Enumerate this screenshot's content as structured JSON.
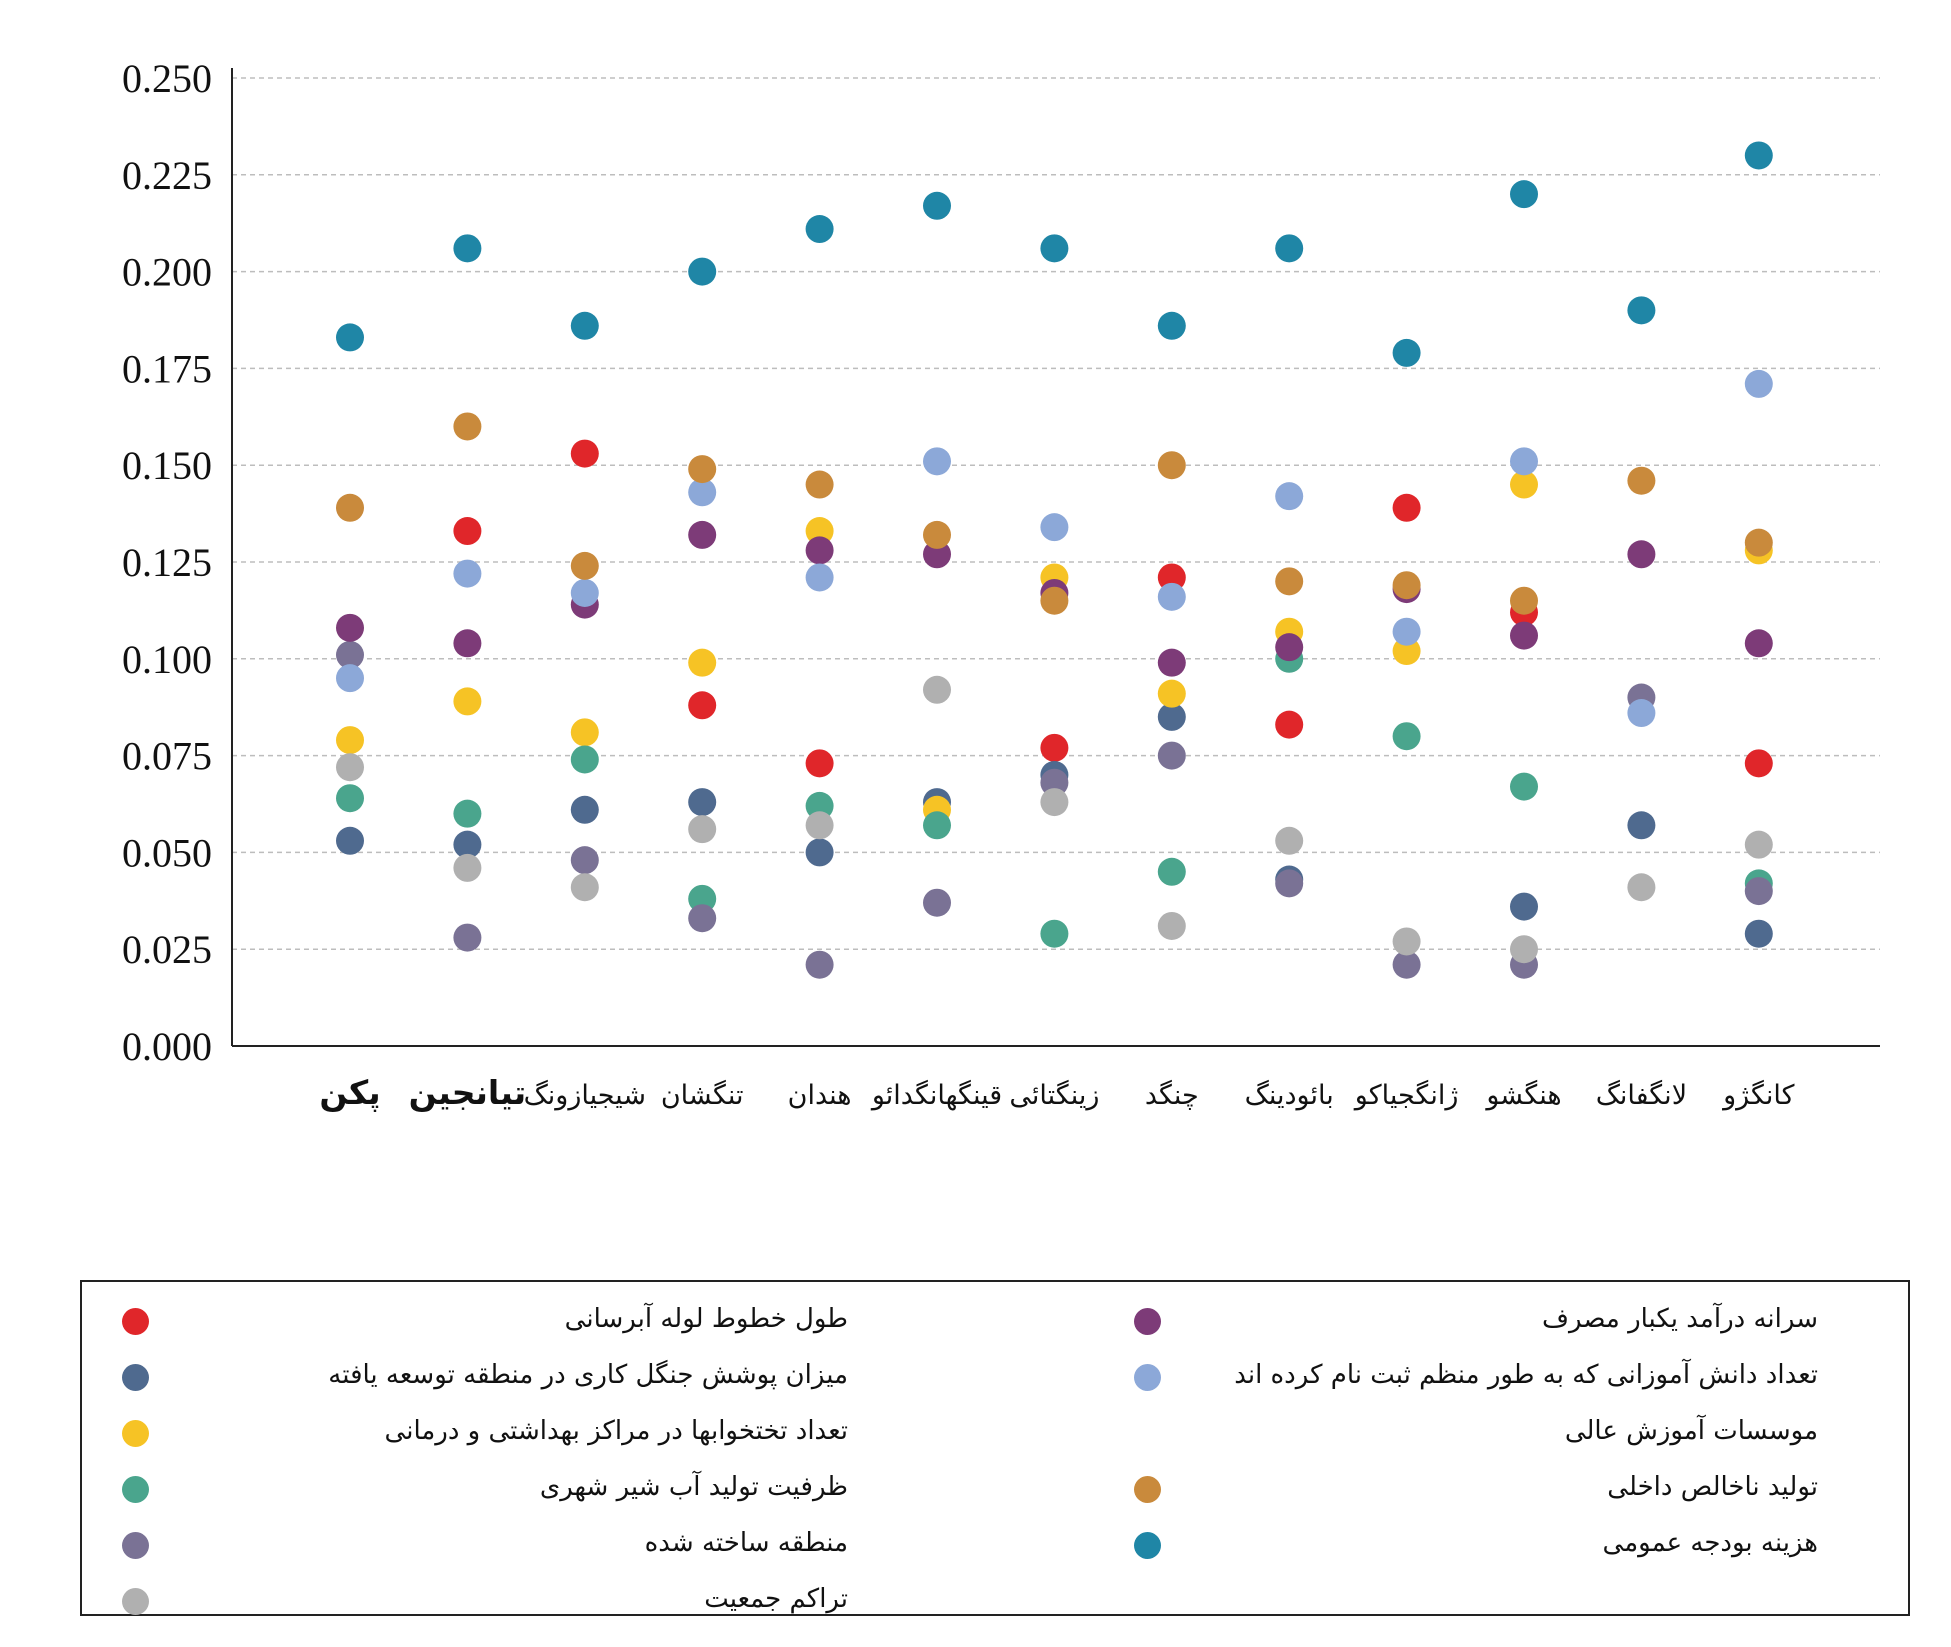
{
  "chart_data": {
    "type": "scatter",
    "title": "",
    "xlabel": "",
    "ylabel": "",
    "ylim": [
      0,
      0.25
    ],
    "yticks": [
      "0.000",
      "0.025",
      "0.050",
      "0.075",
      "0.100",
      "0.125",
      "0.150",
      "0.175",
      "0.200",
      "0.225",
      "0.250"
    ],
    "grid": true,
    "legend_position": "bottom",
    "categories": [
      "پکن",
      "تیانجین",
      "شیجیازونگ",
      "تنگشان",
      "هندان",
      "قینگهانگدائو",
      "زینگتائی",
      "چنگد",
      "بائودینگ",
      "ژانگجیاکو",
      "هنگشو",
      "لانگفانگ",
      "کانگژو"
    ],
    "bold_categories": [
      "پکن",
      "تیانجین"
    ],
    "series": [
      {
        "name": "طول خطوط لوله آبرسانی",
        "color": "#e0262a",
        "values": [
          null,
          0.133,
          0.153,
          0.088,
          0.073,
          null,
          0.077,
          0.121,
          0.083,
          0.139,
          0.112,
          null,
          0.073
        ]
      },
      {
        "name": "میزان پوشش جنگل کاری در منطقه توسعه یافته",
        "color": "#4f6a8f",
        "values": [
          0.053,
          0.052,
          0.061,
          0.063,
          0.05,
          0.063,
          0.07,
          0.085,
          0.043,
          null,
          0.036,
          0.057,
          0.029
        ]
      },
      {
        "name": "تعداد تختخوابها در مراکز بهداشتی و درمانی",
        "color": "#f6c325",
        "values": [
          0.079,
          0.089,
          0.081,
          0.099,
          0.133,
          0.061,
          0.121,
          0.091,
          0.107,
          0.102,
          0.145,
          null,
          0.128
        ]
      },
      {
        "name": "ظرفیت تولید آب شیر شهری",
        "color": "#4aa58d",
        "values": [
          0.064,
          0.06,
          0.074,
          0.038,
          0.062,
          0.057,
          0.029,
          0.045,
          0.1,
          0.08,
          0.067,
          null,
          0.042
        ]
      },
      {
        "name": "منطقه ساخته شده",
        "color": "#7a7295",
        "values": [
          0.101,
          0.028,
          0.048,
          0.033,
          0.021,
          0.037,
          0.068,
          0.075,
          0.042,
          0.021,
          0.021,
          0.09,
          0.04
        ]
      },
      {
        "name": "تراکم جمعیت",
        "color": "#b0b0b0",
        "values": [
          0.072,
          0.046,
          0.041,
          0.056,
          0.057,
          0.092,
          0.063,
          0.031,
          0.053,
          0.027,
          0.025,
          0.041,
          0.052
        ]
      },
      {
        "name": "سرانه درآمد یکبار مصرف",
        "color": "#7d3b78",
        "values": [
          0.108,
          0.104,
          0.114,
          0.132,
          0.128,
          0.127,
          0.117,
          0.099,
          0.103,
          0.118,
          0.106,
          0.127,
          0.104
        ]
      },
      {
        "name": "تعداد دانش آموزانی که به طور منظم ثبت نام کرده اند",
        "color": "#8ca8d8",
        "values": [
          0.095,
          0.122,
          0.117,
          0.143,
          0.121,
          0.151,
          0.134,
          0.116,
          0.142,
          0.107,
          0.151,
          0.086,
          0.171
        ]
      },
      {
        "name": "موسسات آموزش عالی",
        "color": null,
        "values": []
      },
      {
        "name": "تولید ناخالص داخلی",
        "color": "#c98a3c",
        "values": [
          0.139,
          0.16,
          0.124,
          0.149,
          0.145,
          0.132,
          0.115,
          0.15,
          0.12,
          0.119,
          0.115,
          0.146,
          0.13
        ]
      },
      {
        "name": "هزینه بودجه عمومی",
        "color": "#1f86a6",
        "values": [
          0.183,
          0.206,
          0.186,
          0.2,
          0.211,
          0.217,
          0.206,
          0.186,
          0.206,
          0.179,
          0.22,
          0.19,
          0.23
        ]
      }
    ]
  },
  "legend": {
    "left": [
      {
        "label": "طول خطوط لوله آبرسانی",
        "color": "#e0262a"
      },
      {
        "label": "میزان پوشش جنگل کاری در منطقه توسعه یافته",
        "color": "#4f6a8f"
      },
      {
        "label": "تعداد تختخوابها در مراکز بهداشتی و درمانی",
        "color": "#f6c325"
      },
      {
        "label": "ظرفیت تولید آب شیر شهری",
        "color": "#4aa58d"
      },
      {
        "label": "منطقه ساخته شده",
        "color": "#7a7295"
      },
      {
        "label": "تراکم جمعیت",
        "color": "#b0b0b0"
      }
    ],
    "right": [
      {
        "label": "سرانه درآمد یکبار مصرف",
        "color": "#7d3b78"
      },
      {
        "label": "تعداد دانش آموزانی که به طور منظم ثبت نام کرده اند",
        "color": "#8ca8d8"
      },
      {
        "label": "موسسات آموزش عالی",
        "color": null
      },
      {
        "label": "تولید ناخالص داخلی",
        "color": "#c98a3c"
      },
      {
        "label": "هزینه بودجه عمومی",
        "color": "#1f86a6"
      }
    ]
  }
}
